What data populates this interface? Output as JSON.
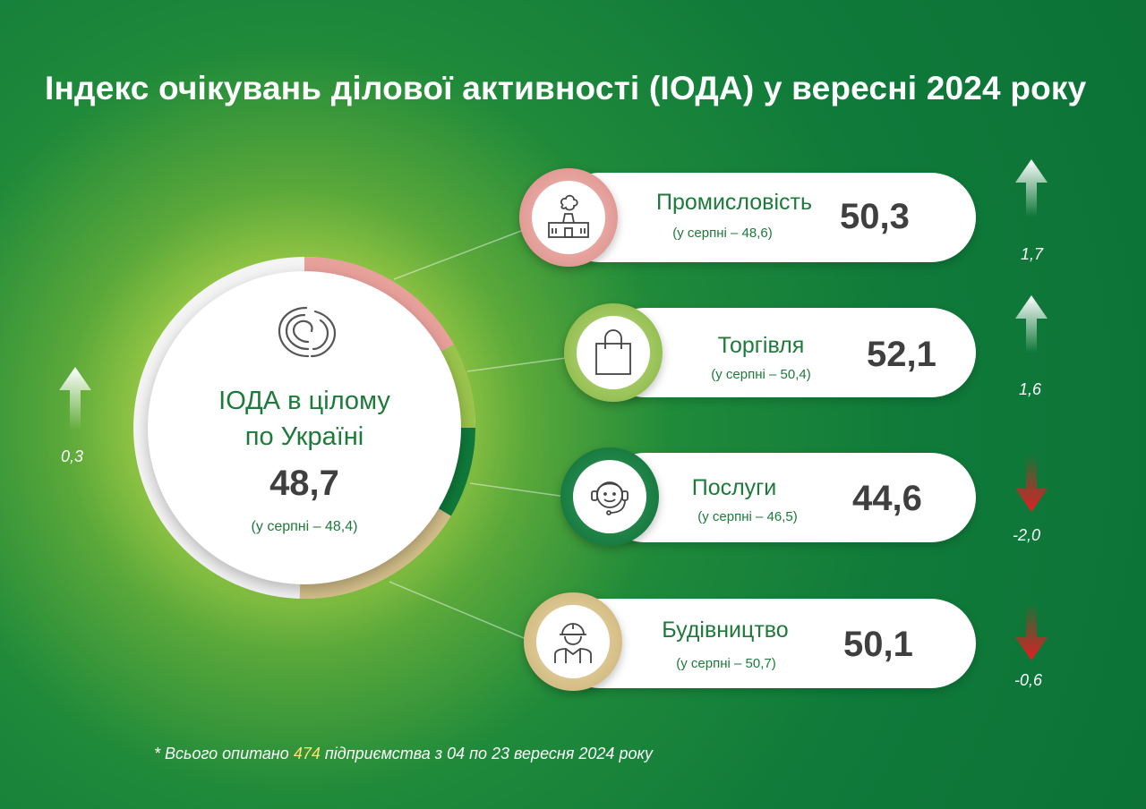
{
  "title": "Індекс очікувань ділової активності (ІОДА) у вересні 2024 року",
  "colors": {
    "up_arrow": "#ffffff",
    "down_arrow": "#e31e24",
    "industry": "#e8a09b",
    "trade": "#8fbf4a",
    "services": "#0f7a3a",
    "construction": "#d4bf8a"
  },
  "overall": {
    "icon": "swirl-logo-icon",
    "label_line1": "ІОДА в цілому",
    "label_line2": "по Україні",
    "value": "48,7",
    "prev": "(у серпні – 48,4)",
    "change": "0,3",
    "direction": "up"
  },
  "sectors": [
    {
      "name": "Промисловість",
      "prev": "(у серпні – 48,6)",
      "value": "50,3",
      "change": "1,7",
      "direction": "up",
      "icon": "factory-icon"
    },
    {
      "name": "Торгівля",
      "prev": "(у серпні – 50,4)",
      "value": "52,1",
      "change": "1,6",
      "direction": "up",
      "icon": "shopping-bag-icon"
    },
    {
      "name": "Послуги",
      "prev": "(у серпні – 46,5)",
      "value": "44,6",
      "change": "-2,0",
      "direction": "down",
      "icon": "headset-operator-icon"
    },
    {
      "name": "Будівництво",
      "prev": "(у серпні – 50,7)",
      "value": "50,1",
      "change": "-0,6",
      "direction": "down",
      "icon": "construction-worker-icon"
    }
  ],
  "footnote": {
    "prefix": "* Всього опитано ",
    "count": "474",
    "suffix": " підприємства з 04 по 23 вересня 2024 року"
  }
}
